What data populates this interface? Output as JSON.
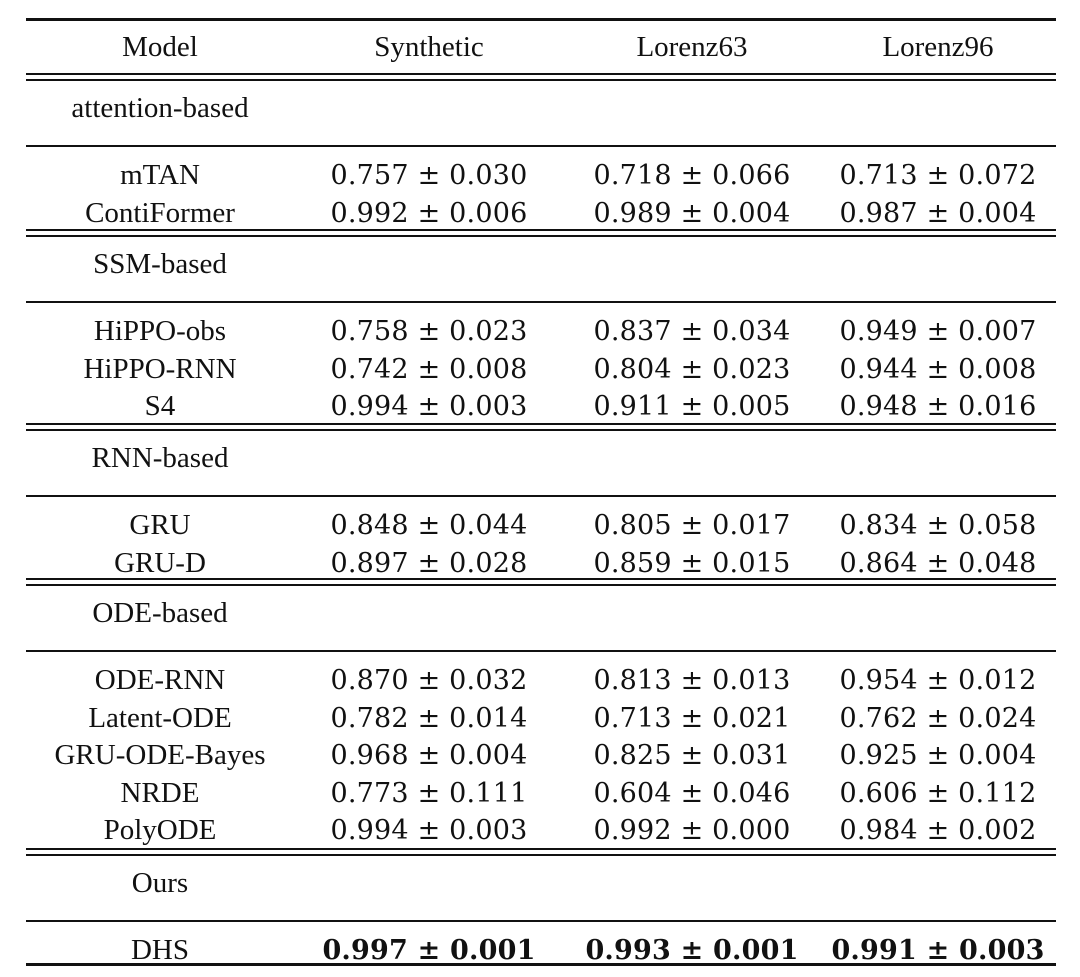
{
  "table": {
    "headers": [
      "Model",
      "Synthetic",
      "Lorenz63",
      "Lorenz96"
    ],
    "sections": [
      {
        "label": "attention-based",
        "rows": [
          {
            "model": "mTAN",
            "values": [
              "0.757 ± 0.030",
              "0.718 ± 0.066",
              "0.713 ± 0.072"
            ]
          },
          {
            "model": "ContiFormer",
            "values": [
              "0.992 ± 0.006",
              "0.989 ± 0.004",
              "0.987 ± 0.004"
            ]
          }
        ]
      },
      {
        "label": "SSM-based",
        "rows": [
          {
            "model": "HiPPO-obs",
            "values": [
              "0.758 ± 0.023",
              "0.837 ± 0.034",
              "0.949 ± 0.007"
            ]
          },
          {
            "model": "HiPPO-RNN",
            "values": [
              "0.742 ± 0.008",
              "0.804 ± 0.023",
              "0.944 ± 0.008"
            ]
          },
          {
            "model": "S4",
            "values": [
              "0.994 ± 0.003",
              "0.911 ± 0.005",
              "0.948 ± 0.016"
            ]
          }
        ]
      },
      {
        "label": "RNN-based",
        "rows": [
          {
            "model": "GRU",
            "values": [
              "0.848 ± 0.044",
              "0.805 ± 0.017",
              "0.834 ± 0.058"
            ]
          },
          {
            "model": "GRU-D",
            "values": [
              "0.897 ± 0.028",
              "0.859 ± 0.015",
              "0.864 ± 0.048"
            ]
          }
        ]
      },
      {
        "label": "ODE-based",
        "rows": [
          {
            "model": "ODE-RNN",
            "values": [
              "0.870 ± 0.032",
              "0.813 ± 0.013",
              "0.954 ± 0.012"
            ]
          },
          {
            "model": "Latent-ODE",
            "values": [
              "0.782 ± 0.014",
              "0.713 ± 0.021",
              "0.762 ± 0.024"
            ]
          },
          {
            "model": "GRU-ODE-Bayes",
            "values": [
              "0.968 ± 0.004",
              "0.825 ± 0.031",
              "0.925 ± 0.004"
            ]
          },
          {
            "model": "NRDE",
            "values": [
              "0.773 ± 0.111",
              "0.604 ± 0.046",
              "0.606 ± 0.112"
            ]
          },
          {
            "model": "PolyODE",
            "values": [
              "0.994 ± 0.003",
              "0.992 ± 0.000",
              "0.984 ± 0.002"
            ]
          }
        ]
      },
      {
        "label": "Ours",
        "rows": [
          {
            "model": "DHS",
            "values": [
              "0.997 ± 0.001",
              "0.993 ± 0.001",
              "0.991 ± 0.003"
            ],
            "bold": true
          }
        ]
      }
    ]
  }
}
